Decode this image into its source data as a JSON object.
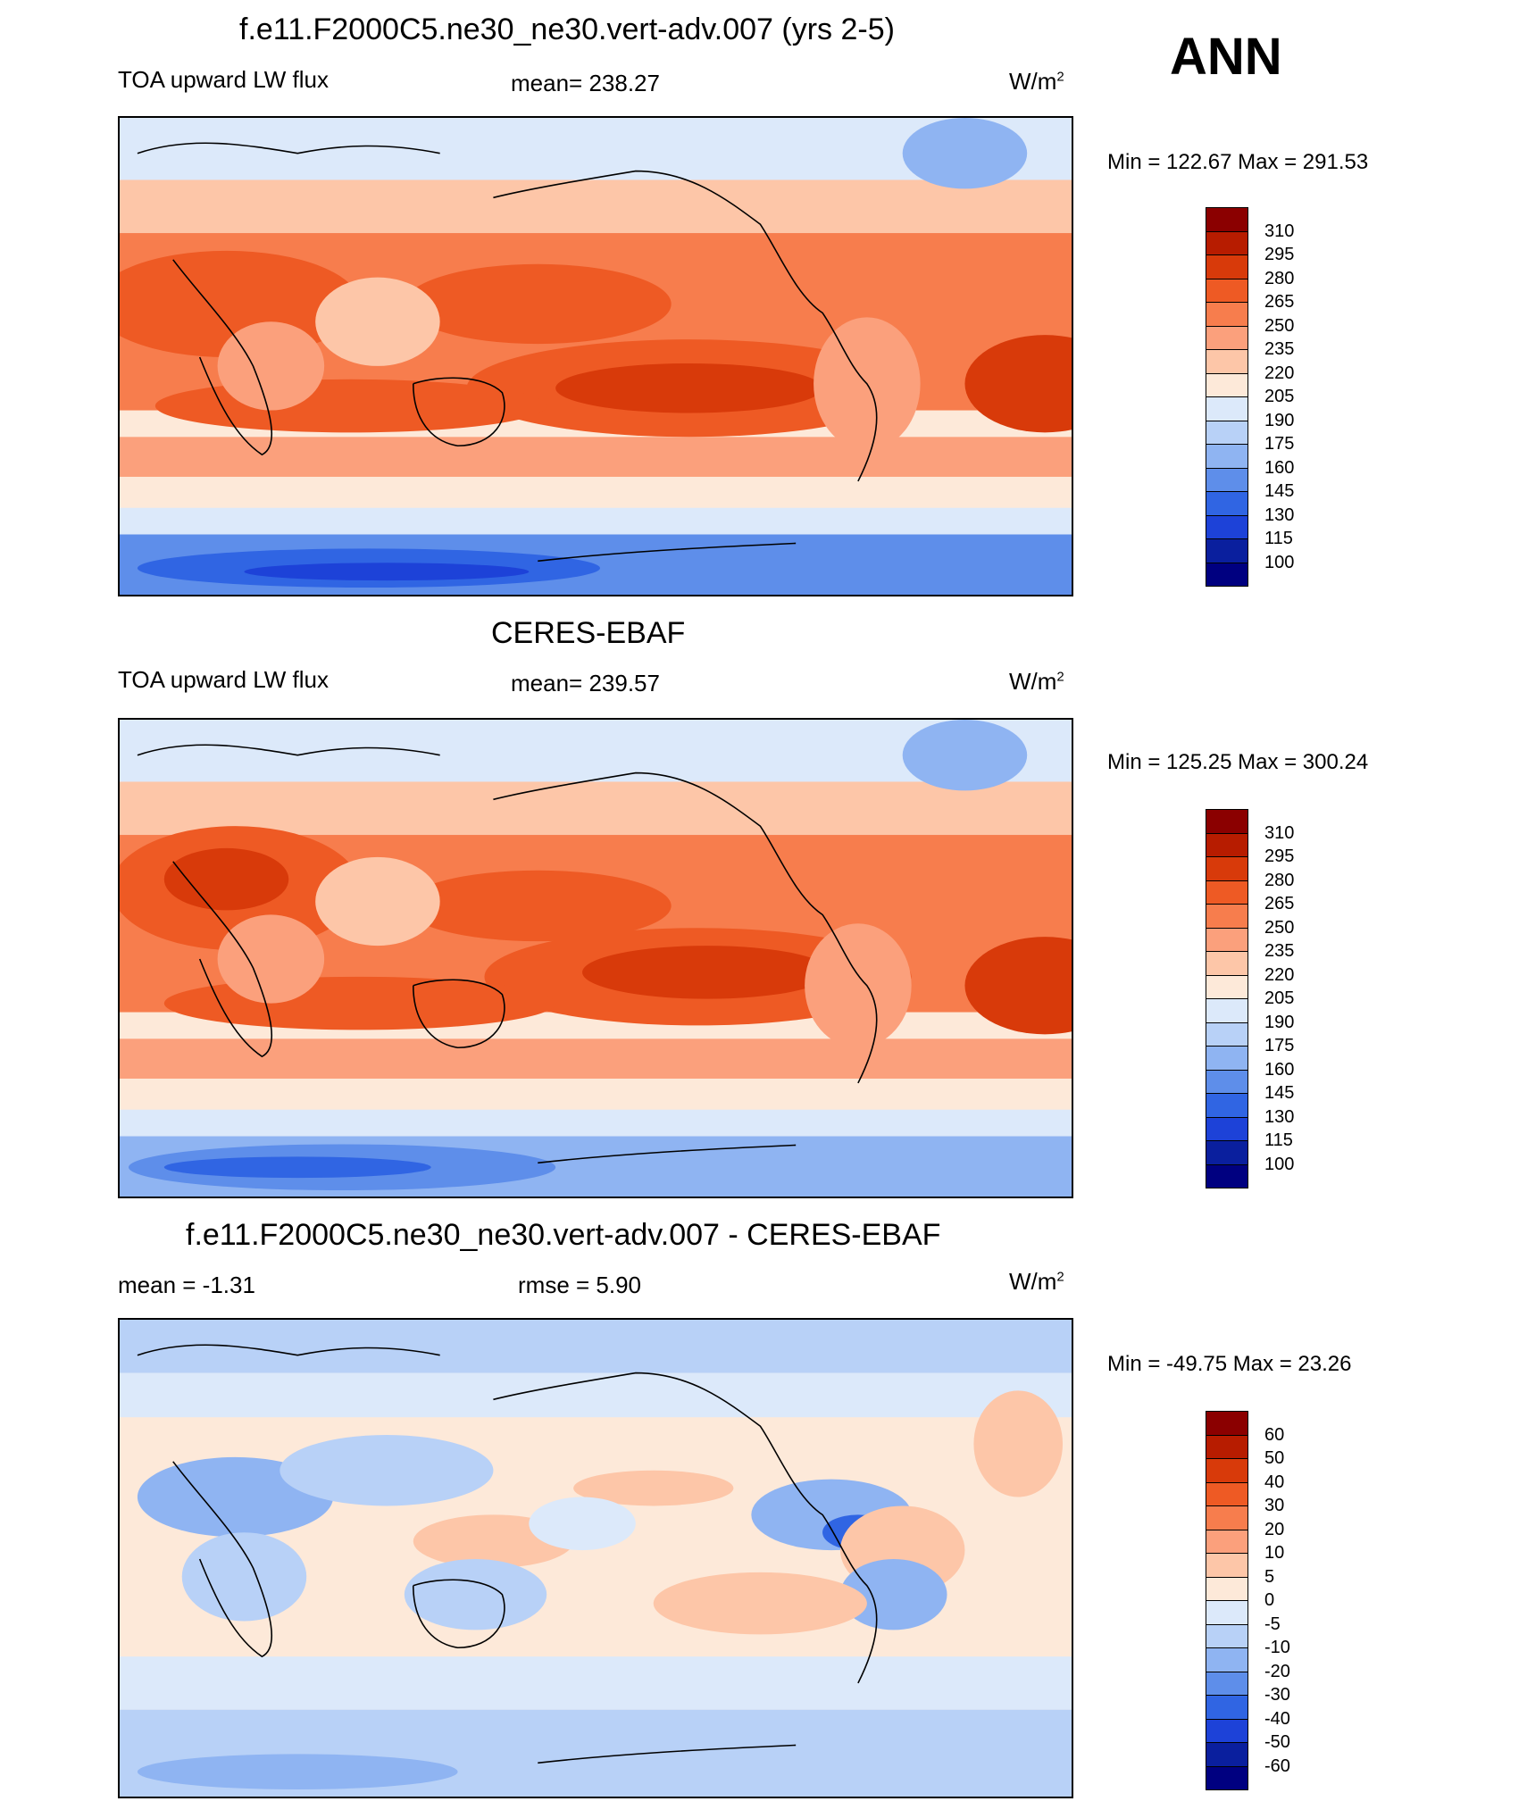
{
  "season": "ANN",
  "units_base": "W/m",
  "units_exp": "2",
  "panels": [
    {
      "title": "f.e11.F2000C5.ne30_ne30.vert-adv.007 (yrs 2-5)",
      "left": "TOA upward LW flux",
      "center": "mean= 238.27",
      "minmax": "Min = 122.67 Max = 291.53",
      "labels": [
        "310",
        "295",
        "280",
        "265",
        "250",
        "235",
        "220",
        "205",
        "190",
        "175",
        "160",
        "145",
        "130",
        "115",
        "100"
      ],
      "colors": [
        "#8b0000",
        "#b71c00",
        "#d83a0a",
        "#ee5a24",
        "#f77d4d",
        "#fba07c",
        "#fdc6a8",
        "#fde9d9",
        "#dce9fa",
        "#b8d1f7",
        "#8fb4f2",
        "#5e8eea",
        "#3065e3",
        "#1d42d8",
        "#0a1f9e",
        "#000080"
      ]
    },
    {
      "title": "CERES-EBAF",
      "left": "TOA upward LW flux",
      "center": "mean= 239.57",
      "minmax": "Min = 125.25 Max = 300.24",
      "labels": [
        "310",
        "295",
        "280",
        "265",
        "250",
        "235",
        "220",
        "205",
        "190",
        "175",
        "160",
        "145",
        "130",
        "115",
        "100"
      ],
      "colors": [
        "#8b0000",
        "#b71c00",
        "#d83a0a",
        "#ee5a24",
        "#f77d4d",
        "#fba07c",
        "#fdc6a8",
        "#fde9d9",
        "#dce9fa",
        "#b8d1f7",
        "#8fb4f2",
        "#5e8eea",
        "#3065e3",
        "#1d42d8",
        "#0a1f9e",
        "#000080"
      ]
    },
    {
      "title": "f.e11.F2000C5.ne30_ne30.vert-adv.007 - CERES-EBAF",
      "left": "mean =  -1.31",
      "center": "rmse =   5.90",
      "minmax": "Min = -49.75 Max =  23.26",
      "labels": [
        "60",
        "50",
        "40",
        "30",
        "20",
        "10",
        "5",
        "0",
        "-5",
        "-10",
        "-20",
        "-30",
        "-40",
        "-50",
        "-60"
      ],
      "colors": [
        "#8b0000",
        "#b71c00",
        "#d83a0a",
        "#ee5a24",
        "#f77d4d",
        "#fba07c",
        "#fdc6a8",
        "#fde9d9",
        "#dce9fa",
        "#b8d1f7",
        "#8fb4f2",
        "#5e8eea",
        "#3065e3",
        "#1d42d8",
        "#0a1f9e",
        "#000080"
      ]
    }
  ]
}
